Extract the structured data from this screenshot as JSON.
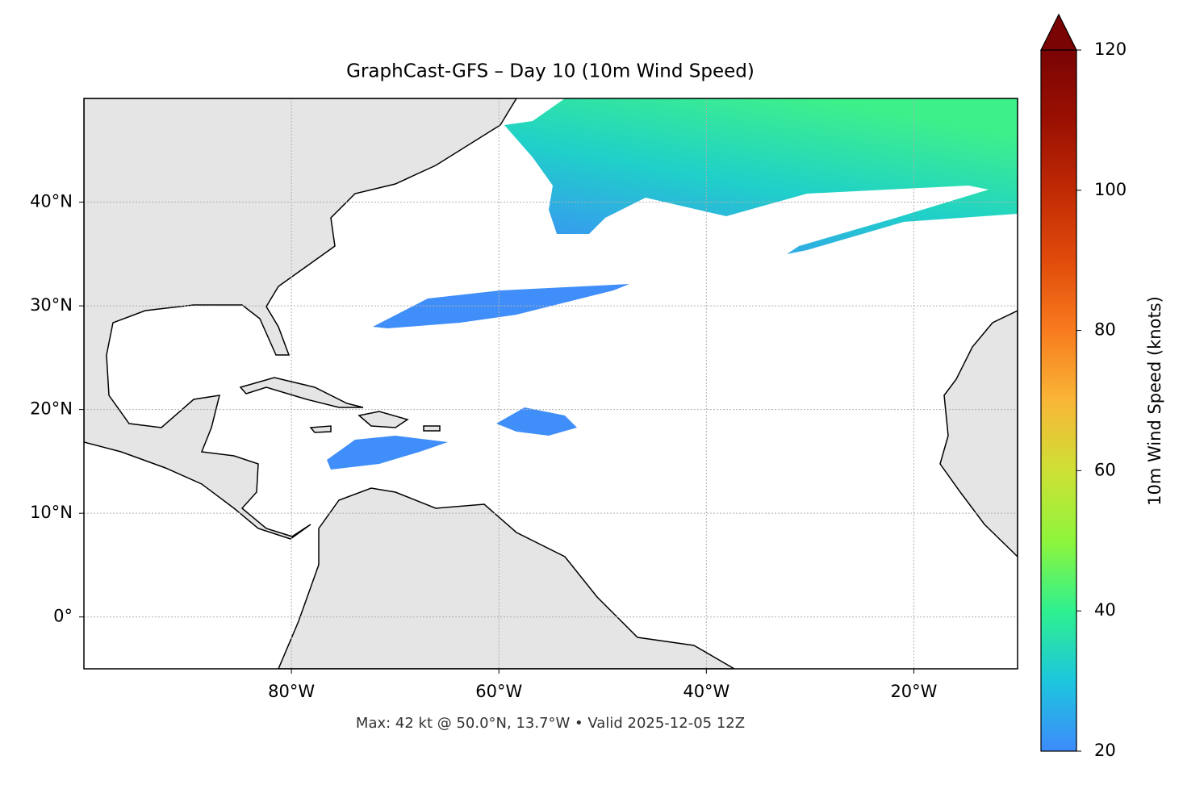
{
  "chart_data": {
    "type": "map",
    "title": "GraphCast-GFS – Day 10 (10m Wind Speed)",
    "footer": "Max: 42 kt @ 50.0°N, 13.7°W • Valid 2025-12-05 12Z",
    "xlim": [
      -100,
      -10
    ],
    "ylim": [
      -5,
      50
    ],
    "xticks": [
      {
        "value": -80,
        "label": "80°W"
      },
      {
        "value": -60,
        "label": "60°W"
      },
      {
        "value": -40,
        "label": "40°W"
      },
      {
        "value": -20,
        "label": "20°W"
      }
    ],
    "yticks": [
      {
        "value": 0,
        "label": "0°"
      },
      {
        "value": 10,
        "label": "10°N"
      },
      {
        "value": 20,
        "label": "20°N"
      },
      {
        "value": 30,
        "label": "30°N"
      },
      {
        "value": 40,
        "label": "40°N"
      }
    ],
    "grid": true,
    "colorbar": {
      "label": "10m Wind Speed (knots)",
      "lim": [
        20,
        120
      ],
      "ticks": [
        20,
        40,
        60,
        80,
        100,
        120
      ]
    }
  }
}
